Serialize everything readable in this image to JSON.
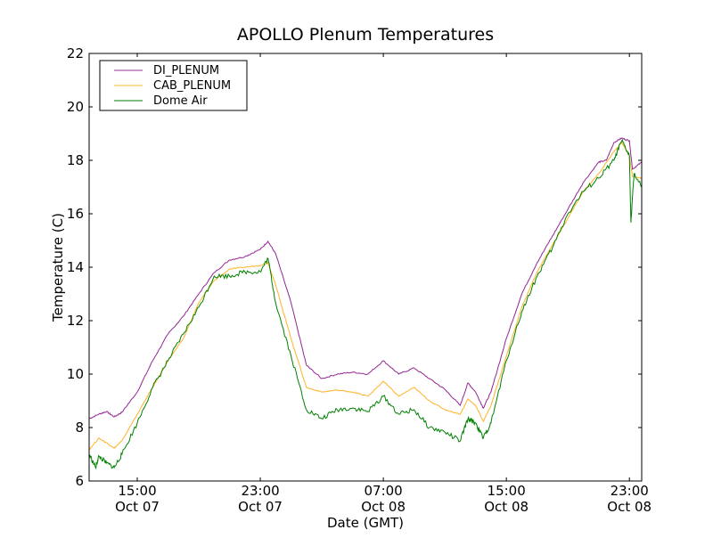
{
  "chart_data": {
    "type": "line",
    "title": "APOLLO Plenum Temperatures",
    "xlabel": "Date (GMT)",
    "ylabel": "Temperature (C)",
    "x_units": "hours since Oct 07 00:00 GMT",
    "xlim": [
      11.87,
      47.8
    ],
    "ylim": [
      6,
      22
    ],
    "yticks": [
      6,
      8,
      10,
      12,
      14,
      16,
      18,
      20,
      22
    ],
    "xticks": [
      {
        "value": 15,
        "label": [
          "15:00",
          "Oct 07"
        ]
      },
      {
        "value": 23,
        "label": [
          "23:00",
          "Oct 07"
        ]
      },
      {
        "value": 31,
        "label": [
          "07:00",
          "Oct 08"
        ]
      },
      {
        "value": 39,
        "label": [
          "15:00",
          "Oct 08"
        ]
      },
      {
        "value": 47,
        "label": [
          "23:00",
          "Oct 08"
        ]
      }
    ],
    "grid": false,
    "legend_position": "top-left",
    "series": [
      {
        "name": "DI_PLENUM",
        "color": "#800080",
        "x": [
          11.87,
          12.5,
          13,
          13.5,
          14,
          15,
          16,
          17,
          18,
          19,
          20,
          21,
          22,
          23,
          23.5,
          24,
          25,
          26,
          27,
          28,
          29,
          30,
          31,
          32,
          33,
          34,
          35,
          36,
          36.5,
          37,
          37.5,
          38,
          39,
          40,
          41,
          42,
          43,
          44,
          45,
          45.5,
          46,
          46.5,
          47,
          47.2,
          47.8
        ],
        "y": [
          8.33,
          8.5,
          8.6,
          8.4,
          8.57,
          9.33,
          10.5,
          11.5,
          12.17,
          13.0,
          13.8,
          14.27,
          14.4,
          14.67,
          14.97,
          14.5,
          12.67,
          10.33,
          9.83,
          10.0,
          10.07,
          10.0,
          10.5,
          10.0,
          10.23,
          9.83,
          9.43,
          8.83,
          9.67,
          9.33,
          8.73,
          9.33,
          11.33,
          13.0,
          14.17,
          15.17,
          16.17,
          17.17,
          17.93,
          18.0,
          18.67,
          18.83,
          18.73,
          17.67,
          17.93
        ]
      },
      {
        "name": "CAB_PLENUM",
        "color": "#FFA500",
        "x": [
          11.87,
          12.5,
          13,
          13.5,
          14,
          15,
          16,
          17,
          18,
          19,
          20,
          21,
          22,
          23,
          23.5,
          24,
          25,
          26,
          27,
          28,
          29,
          30,
          31,
          32,
          33,
          34,
          35,
          36,
          36.5,
          37,
          37.5,
          38,
          39,
          40,
          41,
          42,
          43,
          44,
          45,
          46,
          46.5,
          47,
          47.2,
          47.8
        ],
        "y": [
          7.17,
          7.6,
          7.43,
          7.23,
          7.5,
          8.5,
          9.5,
          10.5,
          11.33,
          12.67,
          13.5,
          13.93,
          14.0,
          14.07,
          14.17,
          13.33,
          11.33,
          9.5,
          9.33,
          9.4,
          9.33,
          9.17,
          9.73,
          9.17,
          9.5,
          9.0,
          8.67,
          8.5,
          9.07,
          8.83,
          8.23,
          8.83,
          10.67,
          12.5,
          13.83,
          14.83,
          15.83,
          16.83,
          17.5,
          18.33,
          18.67,
          18.17,
          17.4,
          17.33
        ]
      },
      {
        "name": "Dome Air",
        "color": "#008000",
        "x": [
          11.87,
          12.3,
          12.5,
          13,
          13.5,
          14,
          15,
          16,
          17,
          18,
          19,
          20,
          21,
          22,
          23,
          23.5,
          24,
          25,
          26,
          27,
          28,
          29,
          30,
          31,
          32,
          33,
          34,
          35,
          36,
          36.5,
          37,
          37.5,
          38,
          39,
          40,
          41,
          42,
          43,
          44,
          45,
          46,
          46.5,
          47,
          47.1,
          47.3,
          47.8
        ],
        "y": [
          7.0,
          6.5,
          6.93,
          6.67,
          6.5,
          7.0,
          8.17,
          9.5,
          10.5,
          11.5,
          12.5,
          13.67,
          13.67,
          13.83,
          13.83,
          14.33,
          12.67,
          10.67,
          8.67,
          8.33,
          8.67,
          8.73,
          8.6,
          9.17,
          8.5,
          8.67,
          8.0,
          7.83,
          7.5,
          8.33,
          8.17,
          7.6,
          8.17,
          10.5,
          12.33,
          13.67,
          14.73,
          16.0,
          16.83,
          17.33,
          18.0,
          18.73,
          18.17,
          15.67,
          17.5,
          17.0
        ]
      }
    ]
  }
}
